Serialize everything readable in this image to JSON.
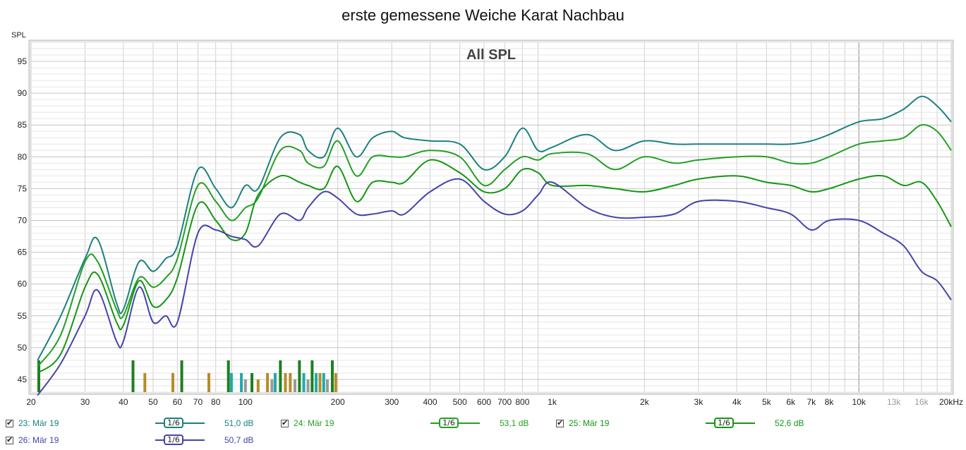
{
  "chart_data": {
    "type": "line",
    "title": "erste gemessene Weiche Karat Nachbau",
    "subtitle": "All SPL",
    "ylabel": "SPL",
    "xlabel": "",
    "x_scale": "log",
    "xlim": [
      20,
      20000
    ],
    "ylim": [
      43,
      98
    ],
    "grid": true,
    "x_ticks": [
      {
        "v": 20,
        "label": "20",
        "gray": false
      },
      {
        "v": 30,
        "label": "30",
        "gray": false
      },
      {
        "v": 40,
        "label": "40",
        "gray": false
      },
      {
        "v": 50,
        "label": "50",
        "gray": false
      },
      {
        "v": 60,
        "label": "60",
        "gray": false
      },
      {
        "v": 70,
        "label": "70",
        "gray": false
      },
      {
        "v": 80,
        "label": "80",
        "gray": false
      },
      {
        "v": 100,
        "label": "100",
        "gray": false
      },
      {
        "v": 200,
        "label": "200",
        "gray": false
      },
      {
        "v": 300,
        "label": "300",
        "gray": false
      },
      {
        "v": 400,
        "label": "400",
        "gray": false
      },
      {
        "v": 500,
        "label": "500",
        "gray": false
      },
      {
        "v": 600,
        "label": "600",
        "gray": false
      },
      {
        "v": 700,
        "label": "700",
        "gray": false
      },
      {
        "v": 800,
        "label": "800",
        "gray": false
      },
      {
        "v": 1000,
        "label": "1k",
        "gray": false
      },
      {
        "v": 2000,
        "label": "2k",
        "gray": false
      },
      {
        "v": 3000,
        "label": "3k",
        "gray": false
      },
      {
        "v": 4000,
        "label": "4k",
        "gray": false
      },
      {
        "v": 5000,
        "label": "5k",
        "gray": false
      },
      {
        "v": 6000,
        "label": "6k",
        "gray": false
      },
      {
        "v": 7000,
        "label": "7k",
        "gray": false
      },
      {
        "v": 8000,
        "label": "8k",
        "gray": false
      },
      {
        "v": 10000,
        "label": "10k",
        "gray": false
      },
      {
        "v": 13000,
        "label": "13k",
        "gray": true
      },
      {
        "v": 16000,
        "label": "16k",
        "gray": true
      },
      {
        "v": 20000,
        "label": "20kHz",
        "gray": false
      }
    ],
    "y_ticks": [
      45,
      50,
      55,
      60,
      65,
      70,
      75,
      80,
      85,
      90,
      95
    ],
    "series": [
      {
        "name": "23: Mär 19",
        "color": "#1b8080",
        "smoothing": "1/6",
        "level": "51,0 dB",
        "x": [
          21,
          25,
          30,
          33,
          38,
          40,
          45,
          50,
          55,
          60,
          70,
          80,
          90,
          100,
          110,
          130,
          150,
          160,
          180,
          200,
          230,
          260,
          300,
          330,
          400,
          500,
          600,
          700,
          800,
          900,
          1000,
          1300,
          1600,
          2000,
          2500,
          3000,
          4000,
          5000,
          6000,
          7000,
          8000,
          10000,
          12000,
          14000,
          16000,
          18000,
          20000
        ],
        "y": [
          48,
          55,
          64,
          67,
          57,
          56,
          63.5,
          62,
          64,
          66,
          78,
          75,
          72,
          75.5,
          75,
          83,
          83.5,
          81,
          80,
          84.5,
          80,
          83,
          84,
          83,
          82.5,
          82,
          78,
          80,
          84.5,
          81,
          81.5,
          83.5,
          81,
          82.5,
          82,
          82,
          82,
          82,
          82,
          82.5,
          83.5,
          85.5,
          86,
          87.5,
          89.5,
          88,
          85.5
        ]
      },
      {
        "name": "24: Mär 19",
        "color": "#22a022",
        "smoothing": "1/6",
        "level": "53,1 dB",
        "x": [
          21,
          25,
          30,
          33,
          38,
          40,
          45,
          50,
          55,
          60,
          70,
          80,
          90,
          100,
          110,
          130,
          150,
          160,
          180,
          200,
          230,
          260,
          300,
          330,
          400,
          500,
          600,
          700,
          800,
          900,
          1000,
          1300,
          1600,
          2000,
          2500,
          3000,
          4000,
          5000,
          6000,
          7000,
          8000,
          10000,
          12000,
          14000,
          16000,
          18000,
          20000
        ],
        "y": [
          47,
          52,
          63.5,
          63.5,
          56,
          55,
          61,
          59.5,
          61,
          64,
          75.5,
          73,
          70,
          72,
          73.5,
          81,
          81,
          79,
          78.5,
          82.5,
          77,
          80,
          80,
          80,
          81,
          80,
          75.5,
          78,
          80,
          79.5,
          80.5,
          80.5,
          78,
          80,
          79,
          79.5,
          80,
          80,
          79,
          79,
          80,
          82,
          82.5,
          83,
          85,
          84,
          81
        ]
      },
      {
        "name": "25: Mär 19",
        "color": "#149614",
        "smoothing": "1/6",
        "level": "52,6 dB",
        "x": [
          21,
          25,
          30,
          33,
          38,
          40,
          45,
          50,
          55,
          60,
          70,
          80,
          90,
          100,
          110,
          130,
          150,
          160,
          180,
          200,
          230,
          260,
          300,
          330,
          400,
          500,
          600,
          700,
          800,
          900,
          1000,
          1300,
          1600,
          2000,
          2500,
          3000,
          4000,
          5000,
          6000,
          7000,
          8000,
          10000,
          12000,
          14000,
          16000,
          18000,
          20000
        ],
        "y": [
          46,
          49,
          59.5,
          61.5,
          54,
          53.5,
          60.5,
          56.5,
          57.5,
          61,
          72.5,
          70,
          67,
          68,
          74,
          77,
          76,
          75.5,
          75,
          78.5,
          73,
          76,
          76,
          76,
          79.5,
          77.5,
          74.5,
          75,
          78,
          77.5,
          75.5,
          75.5,
          75,
          74.5,
          75.5,
          76.5,
          77,
          76,
          75.5,
          74.5,
          75,
          76.5,
          77,
          75.5,
          76,
          73,
          69
        ]
      },
      {
        "name": "26: Mär 19",
        "color": "#4444aa",
        "smoothing": "1/6",
        "level": "50,7 dB",
        "x": [
          21,
          25,
          30,
          33,
          38,
          40,
          45,
          50,
          55,
          60,
          70,
          80,
          90,
          100,
          110,
          130,
          150,
          160,
          180,
          200,
          230,
          260,
          300,
          330,
          400,
          500,
          600,
          700,
          800,
          900,
          1000,
          1300,
          1600,
          2000,
          2500,
          3000,
          4000,
          5000,
          6000,
          7000,
          8000,
          10000,
          12000,
          14000,
          16000,
          18000,
          20000
        ],
        "y": [
          42.5,
          47.5,
          55,
          59,
          51,
          51,
          59.5,
          54,
          55,
          54,
          68,
          68.5,
          67.5,
          67,
          66,
          71,
          70,
          72,
          74.5,
          73.5,
          71,
          71,
          71.5,
          71,
          74.5,
          76.5,
          73,
          71,
          71.5,
          74,
          76,
          72,
          70.5,
          70.5,
          71,
          73,
          73,
          72,
          71,
          68.5,
          70,
          70,
          68,
          66,
          62,
          60.5,
          57.5
        ]
      }
    ]
  },
  "legend": [
    {
      "name": "23: Mär 19",
      "smoothing": "1/6",
      "level": "51,0 dB"
    },
    {
      "name": "24: Mär 19",
      "smoothing": "1/6",
      "level": "53,1 dB"
    },
    {
      "name": "25: Mär 19",
      "smoothing": "1/6",
      "level": "52,6 dB"
    },
    {
      "name": "26: Mär 19",
      "smoothing": "1/6",
      "level": "50,7 dB"
    }
  ]
}
